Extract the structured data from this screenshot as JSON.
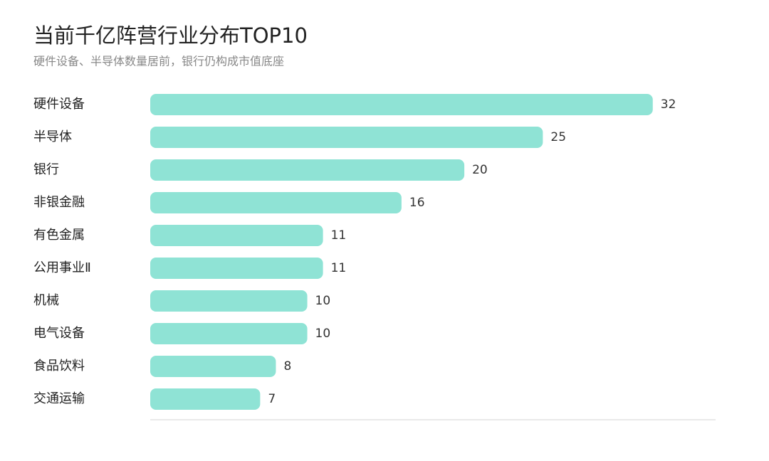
{
  "chart_data": {
    "type": "bar",
    "orientation": "horizontal",
    "title": "当前千亿阵营行业分布TOP10",
    "subtitle": "硬件设备、半导体数量居前，银行仍构成市值底座",
    "categories": [
      "硬件设备",
      "半导体",
      "银行",
      "非银金融",
      "有色金属",
      "公用事业Ⅱ",
      "机械",
      "电气设备",
      "食品饮料",
      "交通运输"
    ],
    "values": [
      32,
      25,
      20,
      16,
      11,
      11,
      10,
      10,
      8,
      7
    ],
    "color": "#8fe3d5",
    "xlim": [
      0,
      36
    ]
  }
}
